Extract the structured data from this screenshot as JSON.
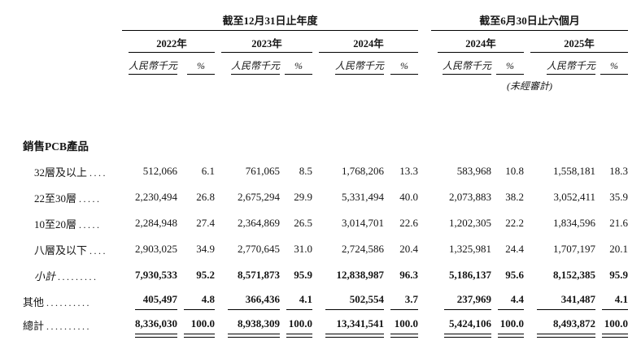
{
  "page": {
    "background": "#ffffff",
    "text_color": "#151515",
    "rule_color": "#000000"
  },
  "table": {
    "sections": [
      {
        "title": "截至12月31日止年度",
        "years": [
          {
            "label": "2022年"
          },
          {
            "label": "2023年"
          },
          {
            "label": "2024年"
          }
        ]
      },
      {
        "title": "截至6月30日止六個月",
        "years": [
          {
            "label": "2024年"
          },
          {
            "label": "2025年"
          }
        ],
        "note": "(未經審計)"
      }
    ],
    "subcols": {
      "rmb": "人民幣千元",
      "pct": "%"
    },
    "rows": [
      {
        "label": "銷售PCB產品",
        "dots": "",
        "indent": 0,
        "section": true,
        "italic_label": false,
        "bold_values": false,
        "rule": "none",
        "values": []
      },
      {
        "label": "32層及以上",
        "dots": "....",
        "indent": 1,
        "section": false,
        "italic_label": false,
        "bold_values": false,
        "rule": "none",
        "values": [
          "512,066",
          "6.1",
          "761,065",
          "8.5",
          "1,768,206",
          "13.3",
          "583,968",
          "10.8",
          "1,558,181",
          "18.3"
        ]
      },
      {
        "label": "22至30層",
        "dots": ".....",
        "indent": 1,
        "section": false,
        "italic_label": false,
        "bold_values": false,
        "rule": "none",
        "values": [
          "2,230,494",
          "26.8",
          "2,675,294",
          "29.9",
          "5,331,494",
          "40.0",
          "2,073,883",
          "38.2",
          "3,052,411",
          "35.9"
        ]
      },
      {
        "label": "10至20層",
        "dots": ".....",
        "indent": 1,
        "section": false,
        "italic_label": false,
        "bold_values": false,
        "rule": "none",
        "values": [
          "2,284,948",
          "27.4",
          "2,364,869",
          "26.5",
          "3,014,701",
          "22.6",
          "1,202,305",
          "22.2",
          "1,834,596",
          "21.6"
        ]
      },
      {
        "label": "八層及以下",
        "dots": "....",
        "indent": 1,
        "section": false,
        "italic_label": false,
        "bold_values": false,
        "rule": "none",
        "values": [
          "2,903,025",
          "34.9",
          "2,770,645",
          "31.0",
          "2,724,586",
          "20.4",
          "1,325,981",
          "24.4",
          "1,707,197",
          "20.1"
        ]
      },
      {
        "label": "小計",
        "dots": ".........",
        "indent": 1,
        "section": false,
        "italic_label": true,
        "bold_values": true,
        "rule": "none",
        "values": [
          "7,930,533",
          "95.2",
          "8,571,873",
          "95.9",
          "12,838,987",
          "96.3",
          "5,186,137",
          "95.6",
          "8,152,385",
          "95.9"
        ]
      },
      {
        "label": "其他",
        "dots": "..........",
        "indent": 0,
        "section": false,
        "italic_label": false,
        "bold_values": true,
        "rule": "single",
        "values": [
          "405,497",
          "4.8",
          "366,436",
          "4.1",
          "502,554",
          "3.7",
          "237,969",
          "4.4",
          "341,487",
          "4.1"
        ]
      },
      {
        "label": "總計",
        "dots": "..........",
        "indent": 0,
        "section": false,
        "italic_label": false,
        "bold_values": true,
        "rule": "double",
        "values": [
          "8,336,030",
          "100.0",
          "8,938,309",
          "100.0",
          "13,341,541",
          "100.0",
          "5,424,106",
          "100.0",
          "8,493,872",
          "100.0"
        ]
      }
    ]
  }
}
